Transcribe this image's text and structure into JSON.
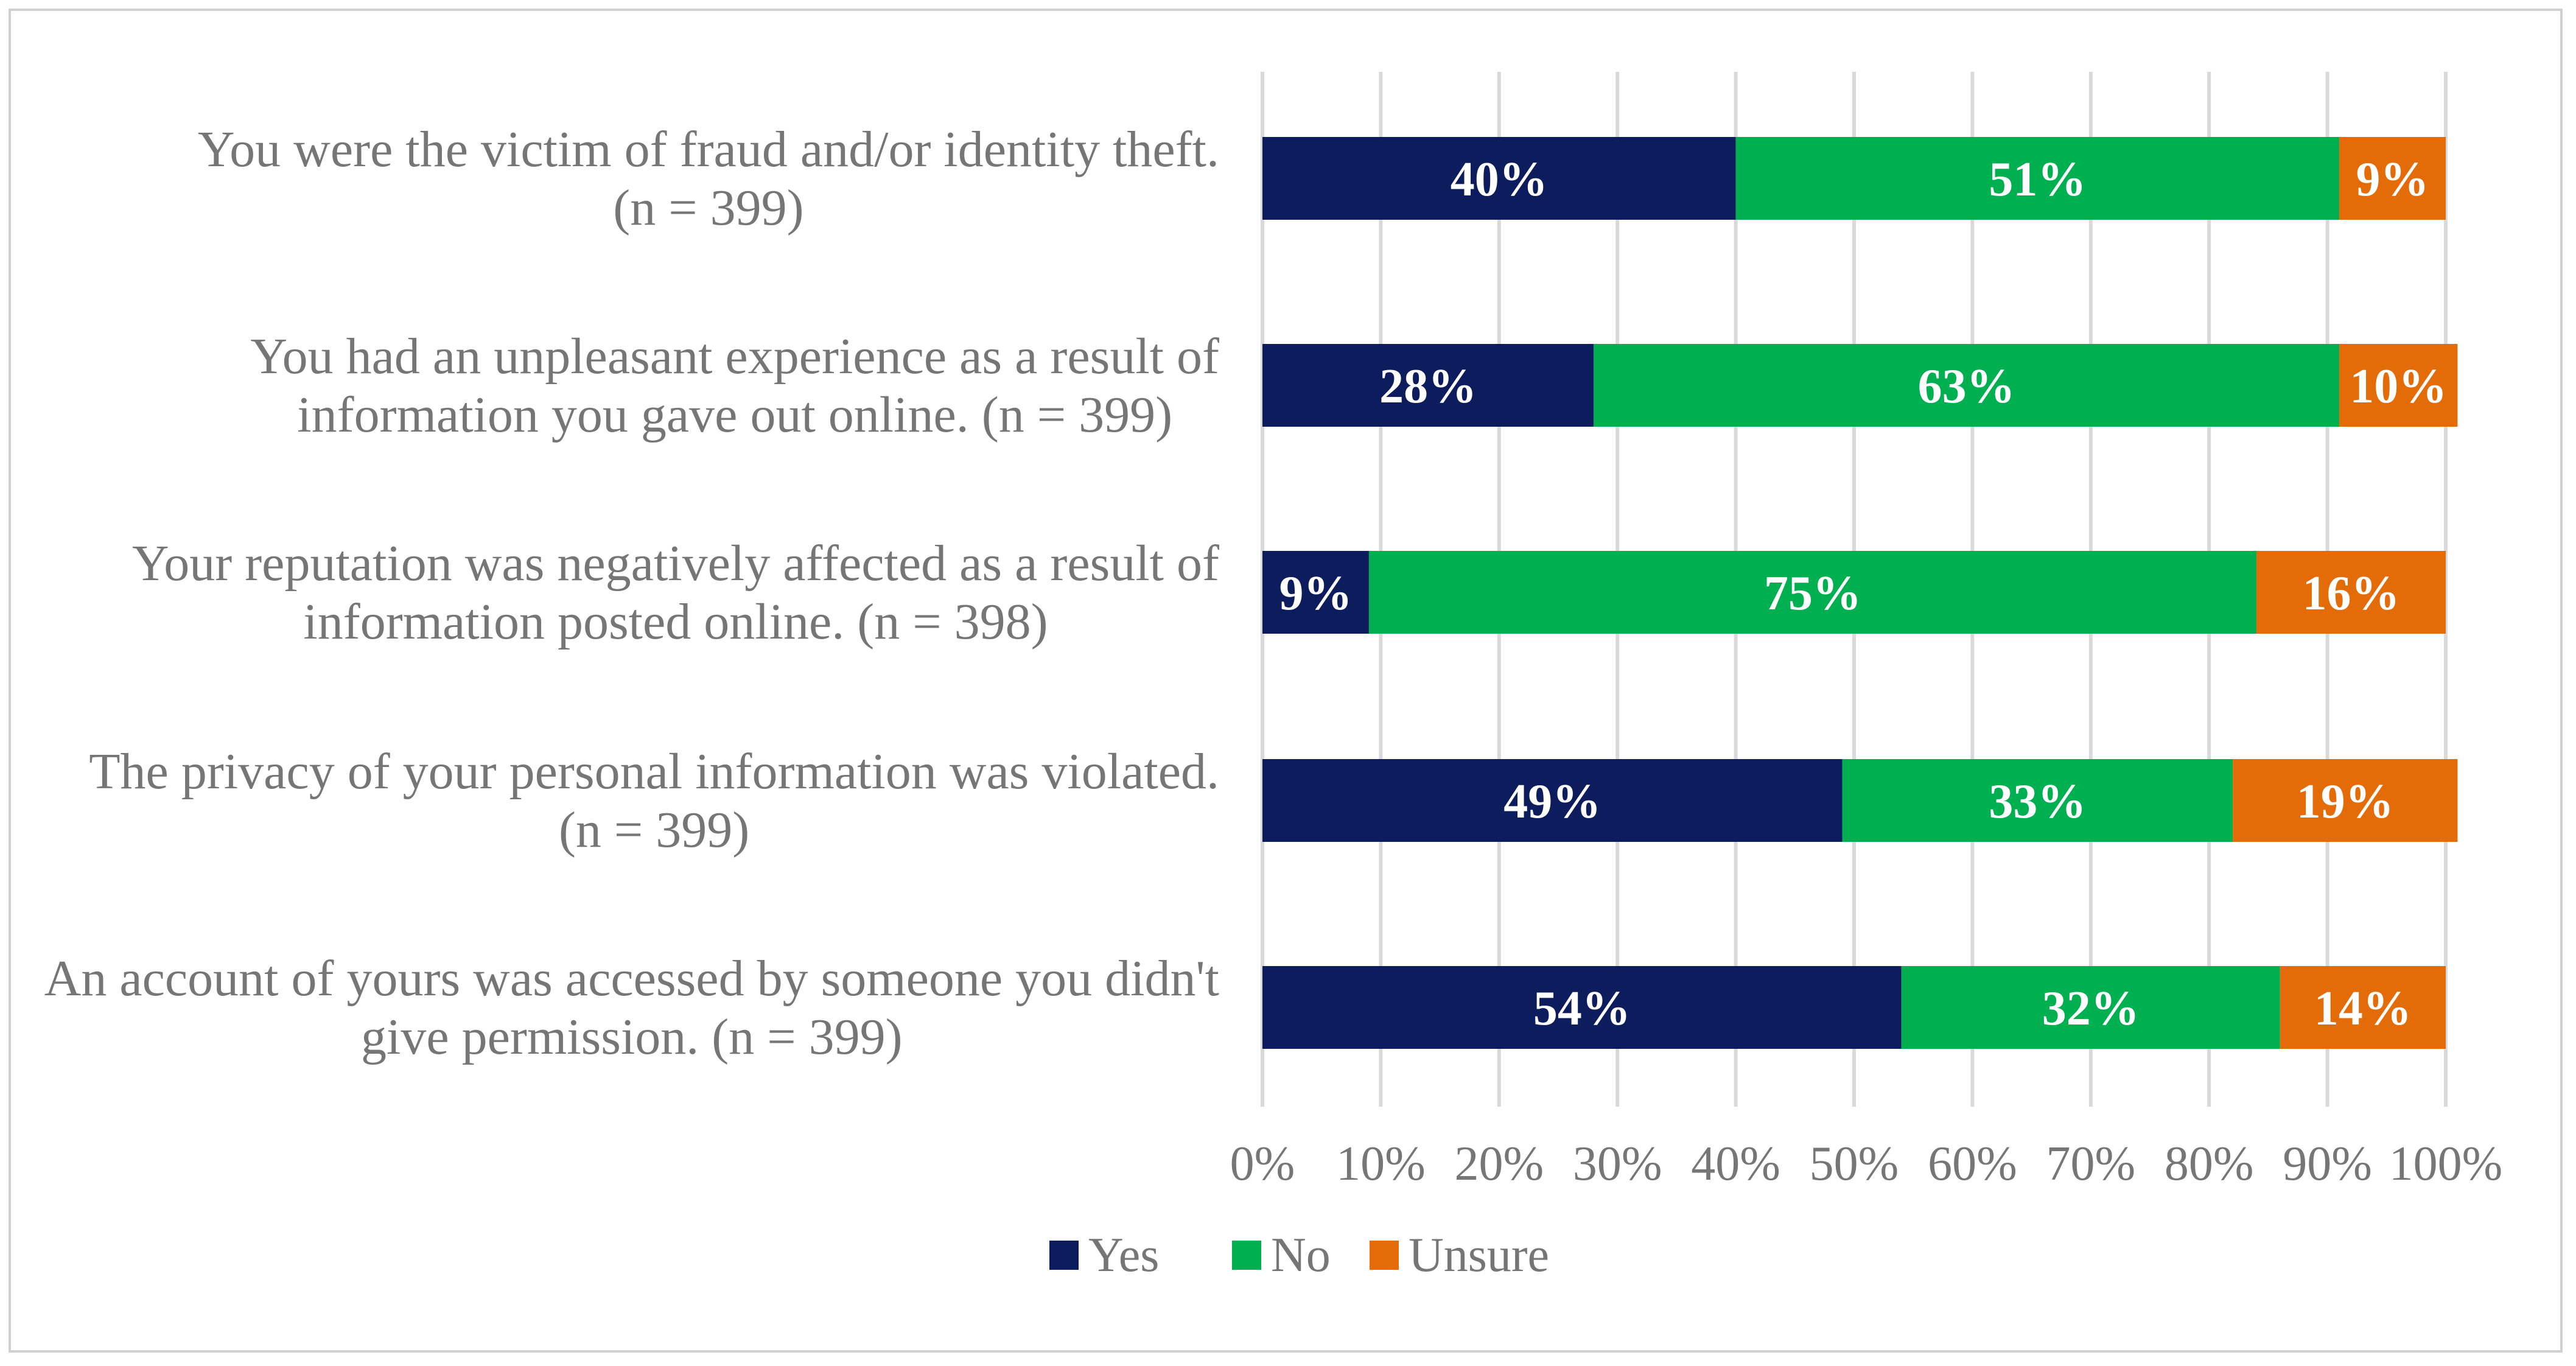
{
  "chart_data": {
    "type": "bar",
    "orientation": "horizontal",
    "stacked": true,
    "categories": [
      [
        "You were the victim of fraud and/or identity theft.",
        "(n = 399)"
      ],
      [
        "You had an unpleasant experience as a result of",
        "information you gave out online. (n = 399)"
      ],
      [
        "Your reputation was negatively affected as a result of",
        "information posted online. (n = 398)"
      ],
      [
        "The privacy of your personal information was violated.",
        "(n = 399)"
      ],
      [
        "An account of yours was accessed by someone you didn't",
        "give permission. (n = 399)"
      ]
    ],
    "series": [
      {
        "name": "Yes",
        "color": "#0c1c5c",
        "values": [
          40,
          28,
          9,
          49,
          54
        ],
        "labels": [
          "40%",
          "28%",
          "9%",
          "49%",
          "54%"
        ]
      },
      {
        "name": "No",
        "color": "#00b050",
        "values": [
          51,
          63,
          75,
          33,
          32
        ],
        "labels": [
          "51%",
          "63%",
          "75%",
          "33%",
          "32%"
        ]
      },
      {
        "name": "Unsure",
        "color": "#e36c09",
        "values": [
          9,
          10,
          16,
          19,
          14
        ],
        "labels": [
          "9%",
          "10%",
          "16%",
          "19%",
          "14%"
        ]
      }
    ],
    "xlim": [
      0,
      100
    ],
    "xticks": [
      0,
      10,
      20,
      30,
      40,
      50,
      60,
      70,
      80,
      90,
      100
    ],
    "xtick_labels": [
      "0%",
      "10%",
      "20%",
      "30%",
      "40%",
      "50%",
      "60%",
      "70%",
      "80%",
      "90%",
      "100%"
    ],
    "grid": true,
    "legend_position": "bottom",
    "title": "",
    "xlabel": "",
    "ylabel": ""
  }
}
